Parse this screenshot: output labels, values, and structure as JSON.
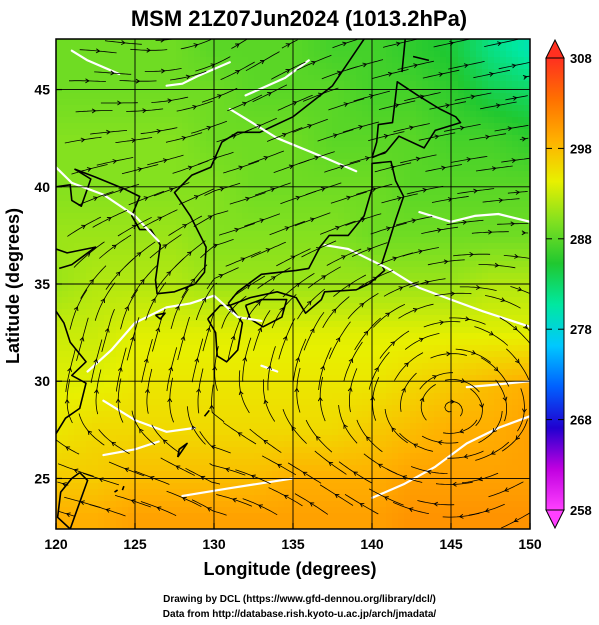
{
  "chart_data": {
    "type": "heatmap",
    "title": "MSM 21Z07Jun2024 (1013.2hPa)",
    "xlabel": "Longitude (degrees)",
    "ylabel": "Latitude  (degrees)",
    "xlim": [
      120,
      150
    ],
    "ylim": [
      22.4,
      47.6
    ],
    "x_ticks": [
      120,
      125,
      130,
      135,
      140,
      145,
      150
    ],
    "y_ticks": [
      25,
      30,
      35,
      40,
      45
    ],
    "x_tick_labels": [
      "120",
      "125",
      "130",
      "135",
      "140",
      "145",
      "150"
    ],
    "y_tick_labels": [
      "25",
      "30",
      "35",
      "40",
      "45"
    ],
    "grid": true,
    "colorbar": {
      "min": 258,
      "max": 308,
      "ticks": [
        258,
        268,
        278,
        288,
        298,
        308
      ],
      "tick_labels": [
        "258",
        "268",
        "278",
        "288",
        "298",
        "308"
      ],
      "colors": [
        "#ff40ff",
        "#c000e0",
        "#2000d0",
        "#0060ff",
        "#00c8ff",
        "#00e8a0",
        "#20c830",
        "#80e020",
        "#e8f000",
        "#ffb000",
        "#ff7000",
        "#ff3020"
      ]
    },
    "temperature_field_K": [
      {
        "lat": 47,
        "values": [
          289,
          289,
          289,
          289,
          288,
          288,
          288,
          287,
          287,
          286,
          285,
          282,
          280
        ]
      },
      {
        "lat": 45,
        "values": [
          289,
          289,
          289,
          289,
          289,
          288,
          288,
          288,
          287,
          287,
          286,
          284,
          283
        ]
      },
      {
        "lat": 42.5,
        "values": [
          290,
          290,
          290,
          290,
          289,
          289,
          289,
          288,
          288,
          288,
          287,
          287,
          286
        ]
      },
      {
        "lat": 40,
        "values": [
          290,
          290,
          290,
          290,
          290,
          289,
          289,
          289,
          289,
          288,
          288,
          288,
          288
        ]
      },
      {
        "lat": 37.5,
        "values": [
          291,
          291,
          291,
          291,
          290,
          290,
          290,
          290,
          289,
          289,
          289,
          289,
          289
        ]
      },
      {
        "lat": 35,
        "values": [
          291,
          292,
          292,
          292,
          291,
          291,
          291,
          291,
          291,
          291,
          291,
          292,
          292
        ]
      },
      {
        "lat": 32.5,
        "values": [
          293,
          293,
          294,
          294,
          294,
          294,
          294,
          294,
          294,
          294,
          294,
          294,
          294
        ]
      },
      {
        "lat": 30,
        "values": [
          294,
          294,
          295,
          295,
          295,
          295,
          295,
          295,
          295,
          296,
          297,
          298,
          299
        ]
      },
      {
        "lat": 27.5,
        "values": [
          295,
          296,
          296,
          296,
          296,
          296,
          296,
          296,
          297,
          298,
          299,
          299,
          300
        ]
      },
      {
        "lat": 25,
        "values": [
          297,
          297,
          298,
          298,
          298,
          298,
          299,
          299,
          299,
          300,
          300,
          300,
          300
        ]
      },
      {
        "lat": 23,
        "values": [
          299,
          299,
          300,
          300,
          300,
          300,
          300,
          300,
          300,
          301,
          301,
          301,
          301
        ]
      }
    ],
    "field_longitudes": [
      120,
      122.5,
      125,
      127.5,
      130,
      132.5,
      135,
      137.5,
      140,
      142.5,
      145,
      147.5,
      150
    ],
    "streamlines": "surface wind streamlines with arrowheads",
    "contours": "white isotherms"
  },
  "credits": {
    "line1": "Drawing by DCL (https://www.gfd-dennou.org/library/dcl/)",
    "line2": "Data from http://database.rish.kyoto-u.ac.jp/arch/jmadata/"
  }
}
